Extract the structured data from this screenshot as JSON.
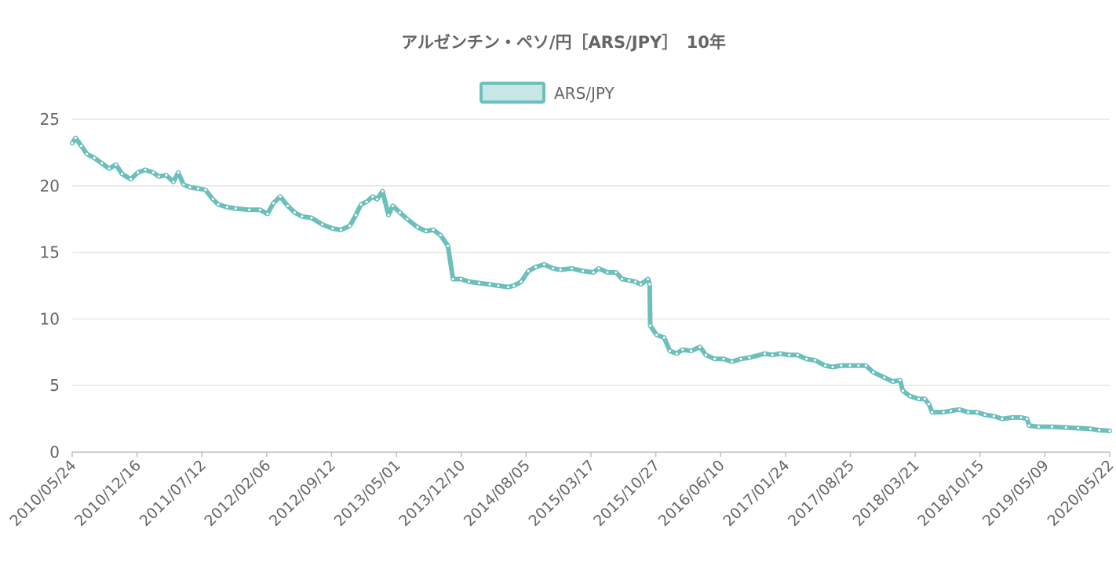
{
  "chart_data": {
    "type": "line",
    "title": "アルゼンチン・ペソ/円［ARS/JPY］　10年",
    "xlabel": "",
    "ylabel": "",
    "ylim": [
      0,
      25
    ],
    "yticks": [
      0,
      5,
      10,
      15,
      20,
      25
    ],
    "grid": true,
    "legend_position": "top-center",
    "x_tick_labels": [
      "2010/05/24",
      "2010/12/16",
      "2011/07/12",
      "2012/02/06",
      "2012/09/12",
      "2013/05/01",
      "2013/12/10",
      "2014/08/05",
      "2015/03/17",
      "2015/10/27",
      "2016/06/10",
      "2017/01/24",
      "2017/08/25",
      "2018/03/21",
      "2018/10/15",
      "2019/05/09",
      "2020/05/22"
    ],
    "series": [
      {
        "name": "ARS/JPY",
        "color": "#6dbfbc",
        "fill": "#c6e7e6",
        "points": [
          [
            "2010/05/24",
            23.2
          ],
          [
            "2010/06/05",
            23.6
          ],
          [
            "2010/06/25",
            23.0
          ],
          [
            "2010/07/15",
            22.4
          ],
          [
            "2010/08/10",
            22.1
          ],
          [
            "2010/09/05",
            21.7
          ],
          [
            "2010/10/01",
            21.3
          ],
          [
            "2010/10/25",
            21.6
          ],
          [
            "2010/11/15",
            20.9
          ],
          [
            "2010/12/16",
            20.5
          ],
          [
            "2011/01/10",
            21.0
          ],
          [
            "2011/02/05",
            21.2
          ],
          [
            "2011/03/05",
            21.0
          ],
          [
            "2011/03/25",
            20.7
          ],
          [
            "2011/04/20",
            20.8
          ],
          [
            "2011/05/15",
            20.3
          ],
          [
            "2011/06/01",
            21.0
          ],
          [
            "2011/06/20",
            20.1
          ],
          [
            "2011/07/12",
            19.9
          ],
          [
            "2011/08/10",
            19.8
          ],
          [
            "2011/09/05",
            19.7
          ],
          [
            "2011/10/01",
            19.0
          ],
          [
            "2011/10/20",
            18.6
          ],
          [
            "2011/11/20",
            18.4
          ],
          [
            "2011/12/20",
            18.3
          ],
          [
            "2012/02/06",
            18.2
          ],
          [
            "2012/03/15",
            18.2
          ],
          [
            "2012/04/10",
            17.9
          ],
          [
            "2012/05/01",
            18.7
          ],
          [
            "2012/05/25",
            19.2
          ],
          [
            "2012/06/20",
            18.5
          ],
          [
            "2012/07/15",
            18.0
          ],
          [
            "2012/08/10",
            17.7
          ],
          [
            "2012/09/12",
            17.6
          ],
          [
            "2012/10/20",
            17.1
          ],
          [
            "2012/11/25",
            16.8
          ],
          [
            "2012/12/25",
            16.7
          ],
          [
            "2013/01/25",
            17.0
          ],
          [
            "2013/02/15",
            17.8
          ],
          [
            "2013/03/05",
            18.6
          ],
          [
            "2013/03/25",
            18.8
          ],
          [
            "2013/04/15",
            19.2
          ],
          [
            "2013/05/01",
            19.0
          ],
          [
            "2013/05/20",
            19.6
          ],
          [
            "2013/06/10",
            17.8
          ],
          [
            "2013/06/25",
            18.5
          ],
          [
            "2013/07/20",
            18.0
          ],
          [
            "2013/08/15",
            17.5
          ],
          [
            "2013/09/20",
            16.9
          ],
          [
            "2013/10/20",
            16.6
          ],
          [
            "2013/11/15",
            16.7
          ],
          [
            "2013/12/10",
            16.3
          ],
          [
            "2014/01/05",
            15.5
          ],
          [
            "2014/01/23",
            13.0
          ],
          [
            "2014/02/20",
            13.0
          ],
          [
            "2014/03/20",
            12.8
          ],
          [
            "2014/04/25",
            12.7
          ],
          [
            "2014/06/01",
            12.6
          ],
          [
            "2014/07/01",
            12.5
          ],
          [
            "2014/08/05",
            12.4
          ],
          [
            "2014/08/25",
            12.5
          ],
          [
            "2014/09/20",
            12.8
          ],
          [
            "2014/10/15",
            13.6
          ],
          [
            "2014/11/10",
            13.9
          ],
          [
            "2014/12/10",
            14.1
          ],
          [
            "2015/01/10",
            13.8
          ],
          [
            "2015/02/05",
            13.7
          ],
          [
            "2015/03/17",
            13.8
          ],
          [
            "2015/04/25",
            13.6
          ],
          [
            "2015/06/01",
            13.5
          ],
          [
            "2015/06/20",
            13.8
          ],
          [
            "2015/07/20",
            13.5
          ],
          [
            "2015/08/20",
            13.5
          ],
          [
            "2015/09/10",
            13.0
          ],
          [
            "2015/10/05",
            12.9
          ],
          [
            "2015/10/27",
            12.8
          ],
          [
            "2015/11/15",
            12.6
          ],
          [
            "2015/12/10",
            13.0
          ],
          [
            "2015/12/16",
            12.6
          ],
          [
            "2015/12/18",
            9.5
          ],
          [
            "2016/01/10",
            8.8
          ],
          [
            "2016/02/05",
            8.6
          ],
          [
            "2016/02/25",
            7.6
          ],
          [
            "2016/03/20",
            7.4
          ],
          [
            "2016/04/10",
            7.7
          ],
          [
            "2016/05/10",
            7.6
          ],
          [
            "2016/06/10",
            7.9
          ],
          [
            "2016/07/01",
            7.3
          ],
          [
            "2016/08/01",
            7.0
          ],
          [
            "2016/09/01",
            7.0
          ],
          [
            "2016/10/01",
            6.8
          ],
          [
            "2016/11/01",
            7.0
          ],
          [
            "2016/12/01",
            7.1
          ],
          [
            "2017/01/24",
            7.4
          ],
          [
            "2017/02/20",
            7.3
          ],
          [
            "2017/03/20",
            7.4
          ],
          [
            "2017/04/20",
            7.3
          ],
          [
            "2017/05/20",
            7.3
          ],
          [
            "2017/06/20",
            7.0
          ],
          [
            "2017/07/20",
            6.9
          ],
          [
            "2017/08/25",
            6.5
          ],
          [
            "2017/09/20",
            6.4
          ],
          [
            "2017/10/20",
            6.5
          ],
          [
            "2017/11/20",
            6.5
          ],
          [
            "2017/12/20",
            6.5
          ],
          [
            "2018/01/15",
            6.5
          ],
          [
            "2018/02/10",
            6.0
          ],
          [
            "2018/03/21",
            5.6
          ],
          [
            "2018/04/20",
            5.3
          ],
          [
            "2018/05/15",
            5.4
          ],
          [
            "2018/05/25",
            4.6
          ],
          [
            "2018/06/20",
            4.2
          ],
          [
            "2018/07/20",
            4.0
          ],
          [
            "2018/08/10",
            4.0
          ],
          [
            "2018/08/25",
            3.6
          ],
          [
            "2018/09/05",
            3.0
          ],
          [
            "2018/10/15",
            3.0
          ],
          [
            "2018/11/10",
            3.1
          ],
          [
            "2018/12/10",
            3.2
          ],
          [
            "2019/01/10",
            3.0
          ],
          [
            "2019/02/10",
            3.0
          ],
          [
            "2019/03/10",
            2.8
          ],
          [
            "2019/04/10",
            2.7
          ],
          [
            "2019/05/09",
            2.5
          ],
          [
            "2019/06/15",
            2.6
          ],
          [
            "2019/07/15",
            2.6
          ],
          [
            "2019/08/05",
            2.5
          ],
          [
            "2019/08/12",
            2.0
          ],
          [
            "2019/09/15",
            1.9
          ],
          [
            "2019/11/01",
            1.9
          ],
          [
            "2019/12/20",
            1.85
          ],
          [
            "2020/02/01",
            1.8
          ],
          [
            "2020/03/15",
            1.75
          ],
          [
            "2020/04/15",
            1.65
          ],
          [
            "2020/05/22",
            1.6
          ]
        ]
      }
    ]
  }
}
